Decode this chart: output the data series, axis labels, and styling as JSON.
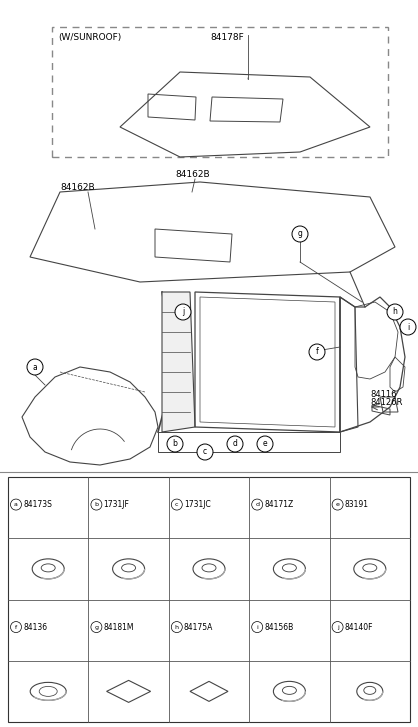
{
  "bg_color": "#ffffff",
  "line_color": "#444444",
  "text_color": "#000000",
  "parts_table": {
    "row1": [
      {
        "letter": "a",
        "part": "84173S"
      },
      {
        "letter": "b",
        "part": "1731JF"
      },
      {
        "letter": "c",
        "part": "1731JC"
      },
      {
        "letter": "d",
        "part": "84171Z"
      },
      {
        "letter": "e",
        "part": "83191"
      }
    ],
    "row2": [
      {
        "letter": "f",
        "part": "84136"
      },
      {
        "letter": "g",
        "part": "84181M"
      },
      {
        "letter": "h",
        "part": "84175A"
      },
      {
        "letter": "i",
        "part": "84156B"
      },
      {
        "letter": "j",
        "part": "84140F"
      }
    ]
  }
}
